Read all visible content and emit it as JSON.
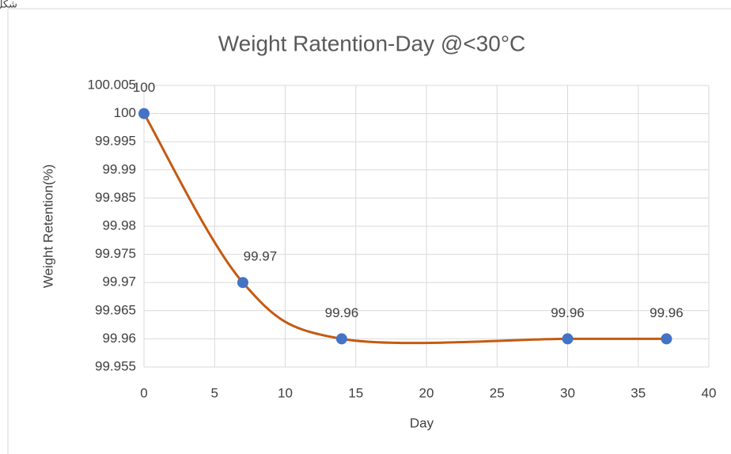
{
  "caption": "شكل",
  "chart_data": {
    "type": "line",
    "title": "Weight Ratention-Day @<30°C",
    "xlabel": "Day",
    "ylabel": "Weight Retention(%)",
    "x": [
      0,
      7,
      14,
      30,
      37
    ],
    "values": [
      100,
      99.97,
      99.96,
      99.96,
      99.96
    ],
    "line_color": "#c55a11",
    "marker_color": "#4472c4",
    "smooth": true,
    "xlim": [
      0,
      40
    ],
    "xticks": [
      0,
      5,
      10,
      15,
      20,
      25,
      30,
      35,
      40
    ],
    "ylim": [
      99.955,
      100.005
    ],
    "yticks": [
      99.955,
      99.96,
      99.965,
      99.97,
      99.975,
      99.98,
      99.985,
      99.99,
      99.995,
      100,
      100.005
    ],
    "grid": true,
    "data_labels": true
  }
}
